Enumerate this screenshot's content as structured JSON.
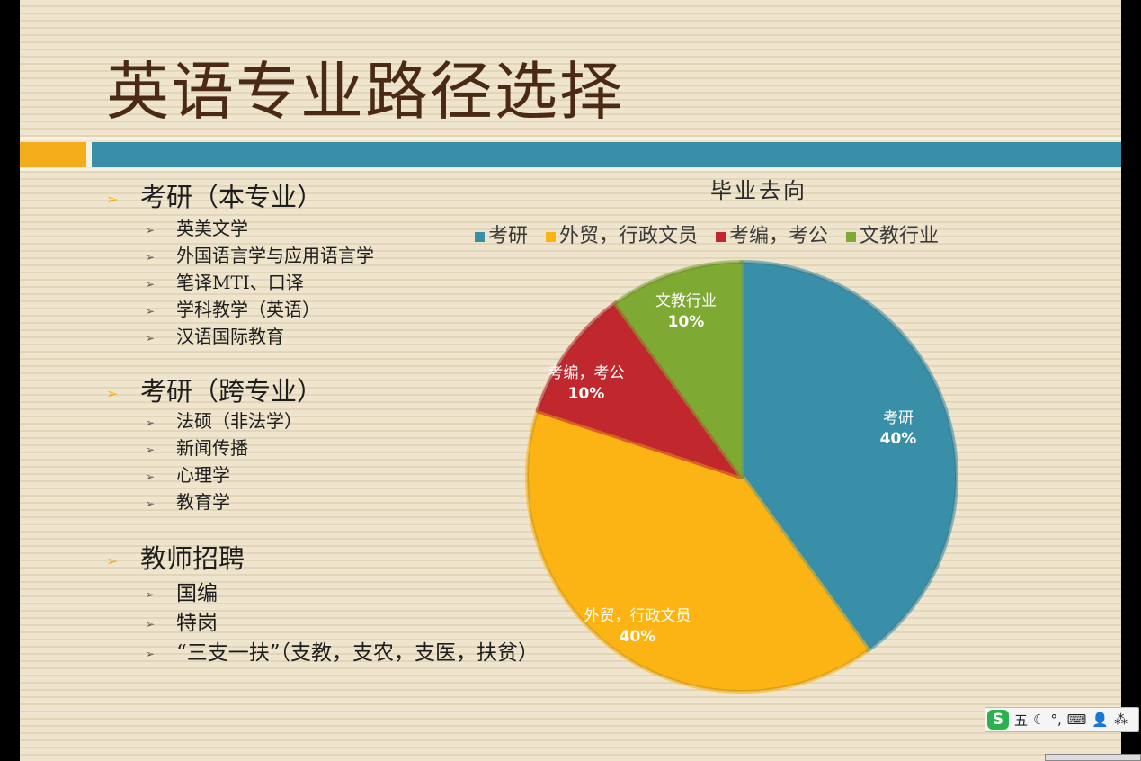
{
  "slide": {
    "title": "英语专业路径选择"
  },
  "outline": [
    {
      "label": "考研（本专业）",
      "items": [
        "英美文学",
        "外国语言学与应用语言学",
        "笔译MTI、口译",
        "学科教学（英语）",
        "汉语国际教育"
      ]
    },
    {
      "label": "考研（跨专业）",
      "items": [
        "法硕（非法学）",
        "新闻传播",
        "心理学",
        "教育学"
      ]
    },
    {
      "label": "教师招聘",
      "items": [
        "国编",
        "特岗",
        "“三支一扶”（支教，支农，支医，扶贫）"
      ]
    }
  ],
  "chart_data": {
    "type": "pie",
    "title": "毕业去向",
    "legend_position": "top",
    "slices": [
      {
        "label": "考研",
        "value": 40,
        "display": "40%",
        "color": "#3a8fa8"
      },
      {
        "label": "外贸，行政文员",
        "value": 40,
        "display": "40%",
        "color": "#fbb413"
      },
      {
        "label": "考编，考公",
        "value": 10,
        "display": "10%",
        "color": "#c0282d"
      },
      {
        "label": "文教行业",
        "value": 10,
        "display": "10%",
        "color": "#7ea932"
      }
    ]
  },
  "ime_toolbar": {
    "logo": "S",
    "mode": "五",
    "moon_icon": "moon-icon",
    "punct": "°,",
    "keyboard_icon": "keyboard-icon",
    "user_icon": "user-icon",
    "apps_icon": "apps-icon"
  }
}
